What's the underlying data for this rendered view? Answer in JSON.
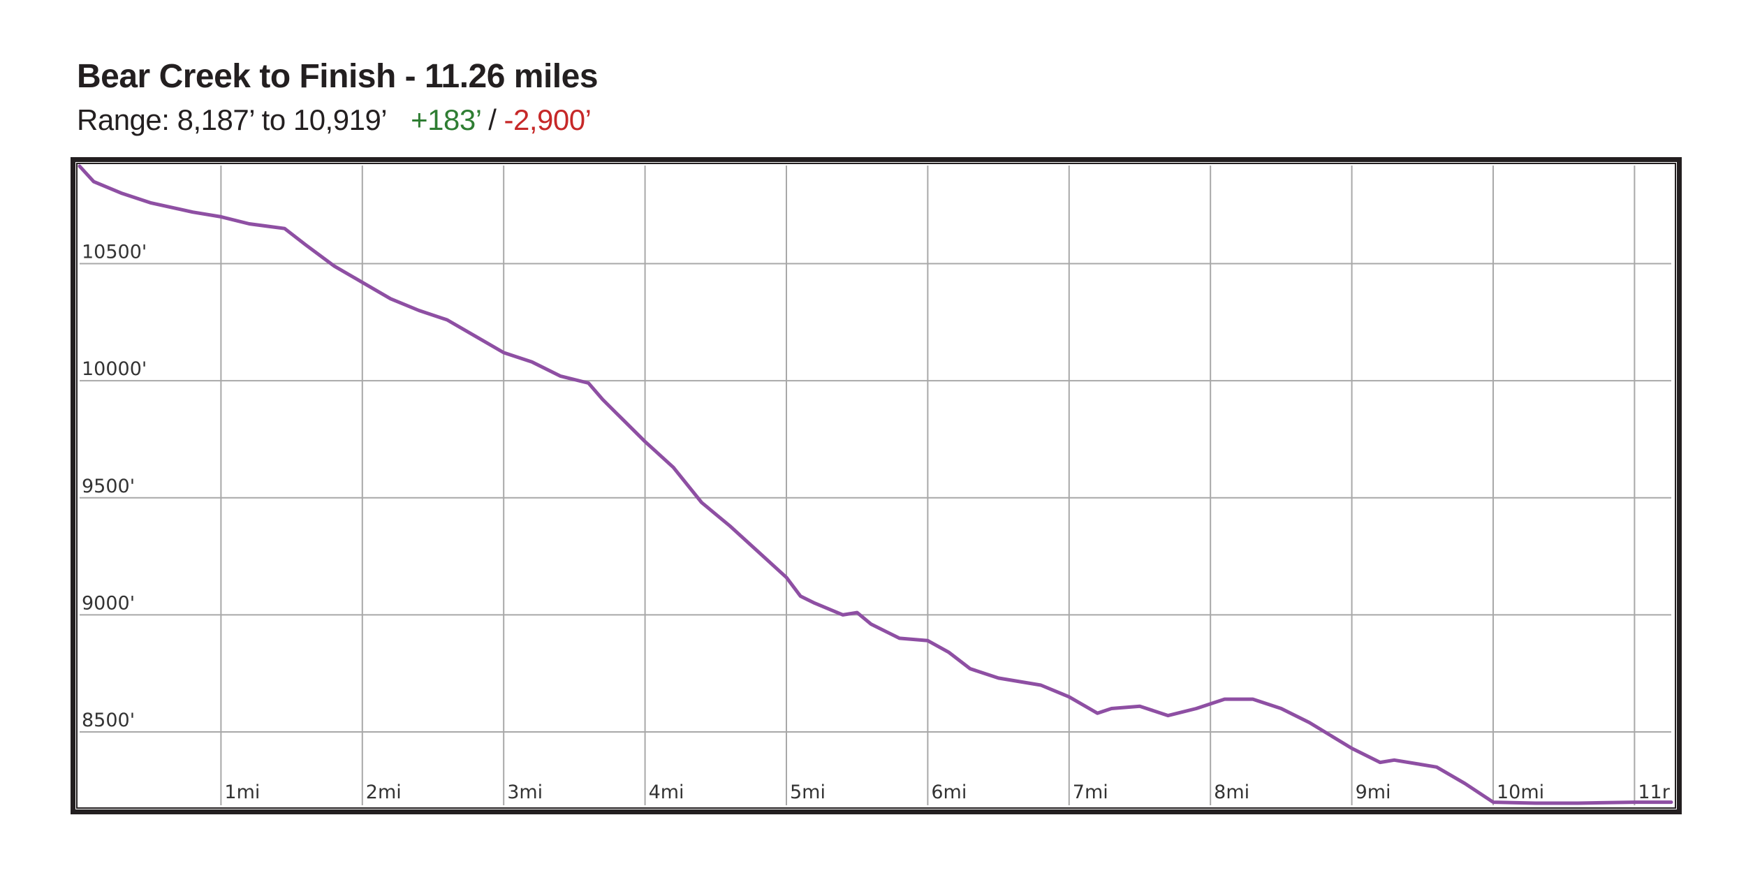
{
  "header": {
    "title": "Bear Creek to Finish - 11.26 miles",
    "range_text": "Range: 8,187’ to 10,919’",
    "gain_text": "+183’",
    "separator": "/",
    "loss_text": "-2,900’"
  },
  "colors": {
    "line": "#8e4fa3",
    "gain": "#2e7d32",
    "loss": "#c62828",
    "grid": "#a8a8a8",
    "frame": "#231f20"
  },
  "chart_data": {
    "type": "line",
    "title": "Bear Creek to Finish - 11.26 miles",
    "xlabel": "",
    "ylabel": "",
    "xlim": [
      0,
      11.26
    ],
    "ylim": [
      8187,
      10919
    ],
    "grid": true,
    "legend": "none",
    "x_ticks": [
      1,
      2,
      3,
      4,
      5,
      6,
      7,
      8,
      9,
      10,
      11
    ],
    "x_tick_labels": [
      "1mi",
      "2mi",
      "3mi",
      "4mi",
      "5mi",
      "6mi",
      "7mi",
      "8mi",
      "9mi",
      "10mi",
      "11r"
    ],
    "y_ticks": [
      8500,
      9000,
      9500,
      10000,
      10500
    ],
    "y_tick_labels": [
      "8500'",
      "9000'",
      "9500'",
      "10000'",
      "10500'"
    ],
    "series": [
      {
        "x": [
          0,
          0.1,
          0.3,
          0.5,
          0.8,
          1.0,
          1.2,
          1.45,
          1.6,
          1.8,
          2.0,
          2.2,
          2.4,
          2.6,
          2.8,
          3.0,
          3.2,
          3.4,
          3.6,
          3.7,
          3.8,
          4.0,
          4.2,
          4.4,
          4.6,
          4.8,
          5.0,
          5.1,
          5.2,
          5.4,
          5.5,
          5.6,
          5.8,
          6.0,
          6.15,
          6.3,
          6.5,
          6.8,
          7.0,
          7.2,
          7.3,
          7.5,
          7.7,
          7.9,
          8.1,
          8.3,
          8.5,
          8.7,
          9.0,
          9.2,
          9.3,
          9.6,
          9.8,
          10.0,
          10.3,
          10.6,
          11.0,
          11.26
        ],
        "y": [
          10919,
          10850,
          10800,
          10760,
          10720,
          10700,
          10670,
          10650,
          10580,
          10490,
          10420,
          10350,
          10300,
          10260,
          10190,
          10120,
          10080,
          10020,
          9990,
          9920,
          9860,
          9740,
          9630,
          9480,
          9380,
          9270,
          9160,
          9080,
          9050,
          9000,
          9010,
          8960,
          8900,
          8890,
          8840,
          8770,
          8730,
          8700,
          8650,
          8580,
          8600,
          8610,
          8570,
          8600,
          8640,
          8640,
          8600,
          8540,
          8430,
          8370,
          8380,
          8350,
          8280,
          8200,
          8187,
          8187,
          8200,
          8200
        ]
      }
    ]
  }
}
